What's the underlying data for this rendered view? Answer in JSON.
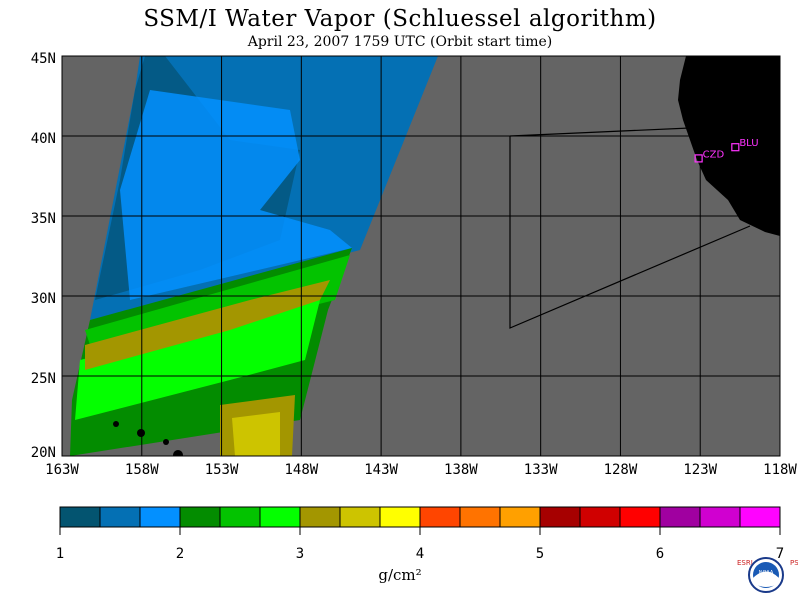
{
  "title": "SSM/I Water Vapor (Schluessel algorithm)",
  "subtitle": "April 23, 2007  1759 UTC  (Orbit start time)",
  "map": {
    "lat_labels": [
      "45N",
      "40N",
      "35N",
      "30N",
      "25N",
      "20N"
    ],
    "lon_labels": [
      "163W",
      "158W",
      "153W",
      "148W",
      "143W",
      "138W",
      "133W",
      "128W",
      "123W",
      "118W"
    ],
    "stations": [
      {
        "name": "CZD",
        "lon": -123.1,
        "lat": 38.6
      },
      {
        "name": "BLU",
        "lon": -120.8,
        "lat": 39.3
      }
    ],
    "colors": {
      "no_data": "#646464",
      "land": "#000000",
      "grid": "#000000",
      "station": "#ff33ff"
    }
  },
  "colorbar": {
    "labels": [
      "1",
      "2",
      "3",
      "4",
      "5",
      "6",
      "7"
    ],
    "units": "g/cm²",
    "colors": [
      "#035470",
      "#0470b4",
      "#0390ff",
      "#038c00",
      "#03c300",
      "#04ff00",
      "#a39600",
      "#cdc400",
      "#ffff00",
      "#ff4500",
      "#ff7300",
      "#ffa000",
      "#a60000",
      "#d00000",
      "#ff0000",
      "#a000a0",
      "#d000d0",
      "#ff03ff"
    ]
  },
  "logo": {
    "org_left": "ESRL",
    "org_center": "NOAA",
    "org_right": "PSD"
  }
}
